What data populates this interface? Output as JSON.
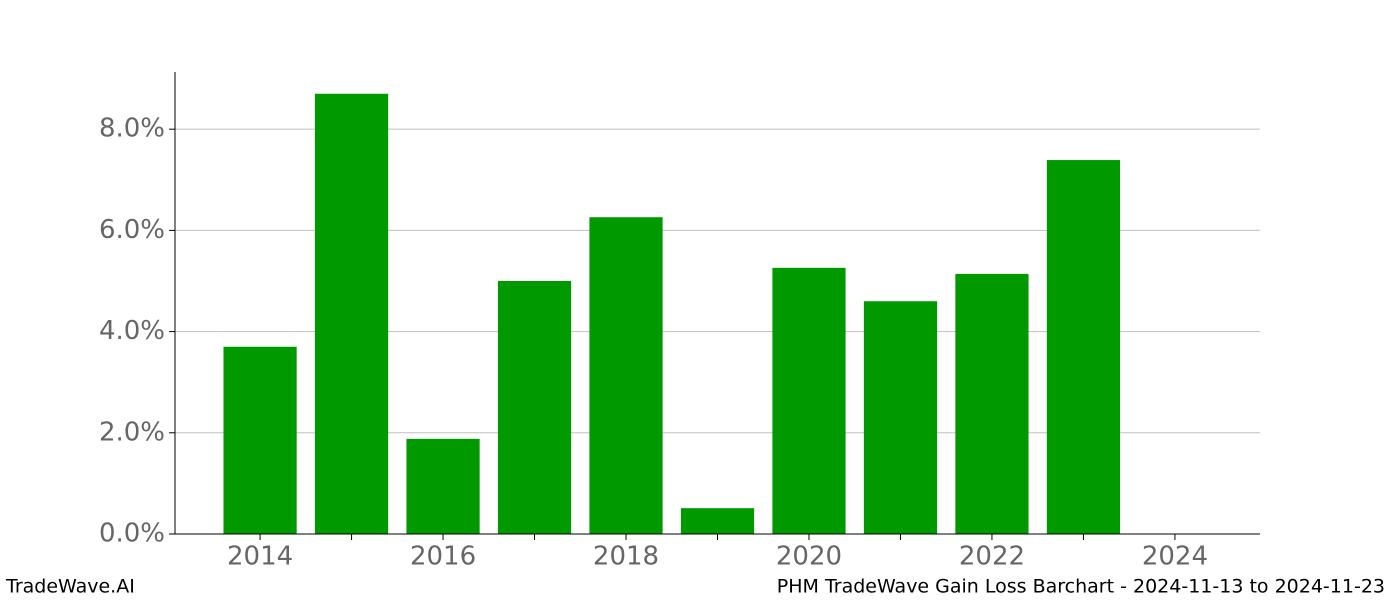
{
  "chart_data": {
    "type": "bar",
    "x": [
      2014,
      2015,
      2016,
      2017,
      2018,
      2019,
      2020,
      2021,
      2022,
      2023
    ],
    "values": [
      3.7,
      8.7,
      1.88,
      5.0,
      6.26,
      0.51,
      5.26,
      4.6,
      5.14,
      7.39
    ],
    "color": "#009900",
    "bar_width": 0.8,
    "xlim": [
      2013.07,
      2024.93
    ],
    "xticks": [
      2014,
      2016,
      2018,
      2020,
      2022,
      2024
    ],
    "xminorticks": [
      2015,
      2017,
      2019,
      2021,
      2023
    ],
    "ylim": [
      0,
      9.13
    ],
    "yticks": [
      {
        "value": 0,
        "label": "0.0%"
      },
      {
        "value": 2,
        "label": "2.0%"
      },
      {
        "value": 4,
        "label": "4.0%"
      },
      {
        "value": 6,
        "label": "6.0%"
      },
      {
        "value": 8,
        "label": "8.0%"
      }
    ],
    "grid": true
  },
  "footer": {
    "left": "TradeWave.AI",
    "right": "PHM TradeWave Gain Loss Barchart - 2024-11-13 to 2024-11-23"
  }
}
